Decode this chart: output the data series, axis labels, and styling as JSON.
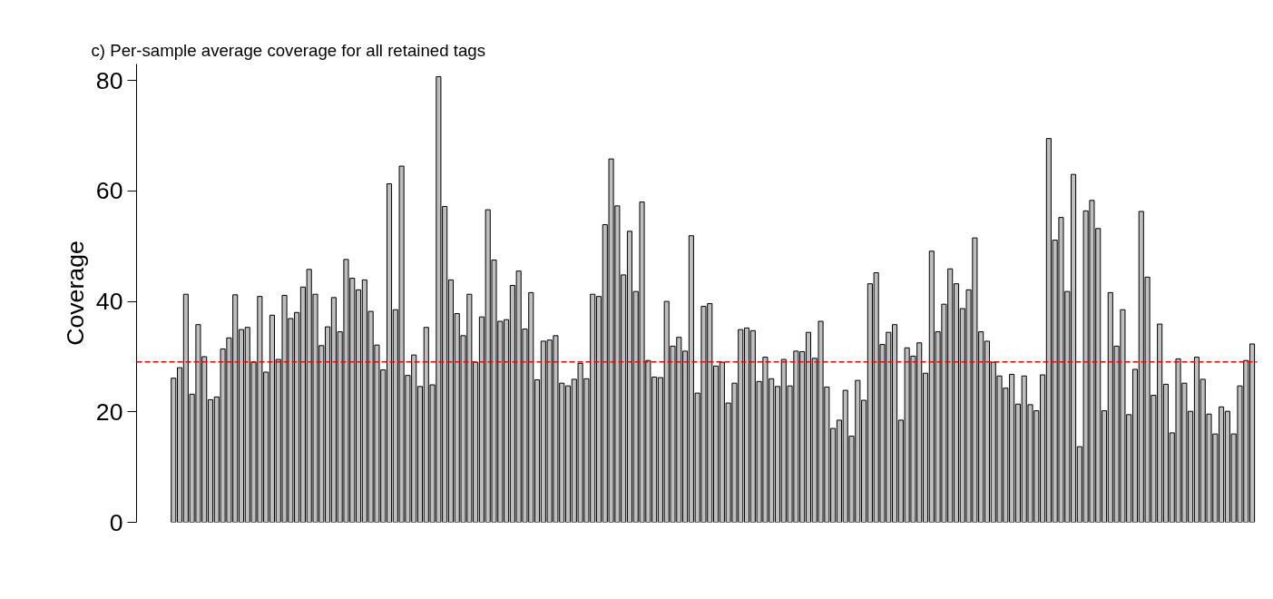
{
  "chart_data": {
    "type": "bar",
    "title": "c)  Per-sample average coverage for all retained tags",
    "ylabel": "Coverage",
    "categories": [
      null,
      null,
      null,
      null,
      null,
      null,
      null,
      null,
      null,
      null,
      null,
      null,
      null,
      null,
      null,
      null,
      null,
      null,
      null,
      null,
      null,
      null,
      null,
      null,
      null,
      null,
      null,
      null,
      null,
      null,
      null,
      null,
      null,
      null,
      null,
      null,
      null,
      null,
      null,
      null,
      null,
      null,
      null,
      null,
      null,
      null,
      null,
      null,
      null,
      null,
      null,
      null,
      null,
      null,
      null,
      null,
      null,
      null,
      null,
      null,
      null,
      null,
      null,
      null,
      null,
      null,
      null,
      null,
      null,
      null,
      null,
      null,
      null,
      null,
      null,
      null,
      null,
      null,
      null,
      null,
      null,
      null,
      null,
      null,
      null,
      null,
      null,
      null,
      null,
      null,
      null,
      null,
      null,
      null,
      null,
      null,
      null,
      null,
      null,
      null,
      null,
      null,
      null,
      null,
      null,
      null,
      null,
      null,
      null,
      null,
      null,
      null,
      null,
      null,
      null,
      null,
      null,
      null,
      null,
      null,
      null,
      null,
      null,
      null,
      null,
      null,
      null,
      null,
      null,
      null,
      null,
      null,
      null,
      null,
      null,
      null,
      null,
      null,
      null,
      null,
      null,
      null,
      null,
      null,
      null,
      null,
      null,
      null,
      null,
      null,
      null,
      null,
      null,
      null,
      null,
      null,
      null,
      null,
      null,
      null,
      null,
      null,
      null,
      null,
      null,
      null,
      null,
      null,
      null,
      null,
      null,
      null,
      null,
      null,
      null,
      null
    ],
    "values": [
      26.1,
      28.0,
      41.3,
      23.2,
      35.8,
      30.0,
      22.2,
      22.7,
      31.4,
      33.4,
      41.2,
      34.9,
      35.3,
      29.0,
      40.9,
      27.2,
      37.5,
      29.5,
      41.1,
      36.9,
      38.0,
      42.6,
      45.8,
      41.3,
      32.0,
      35.4,
      40.7,
      34.5,
      47.6,
      44.2,
      42.1,
      43.9,
      38.2,
      32.1,
      27.6,
      61.3,
      38.5,
      64.5,
      26.6,
      30.3,
      24.6,
      35.3,
      24.9,
      80.7,
      57.2,
      43.9,
      37.8,
      33.8,
      41.3,
      29.0,
      37.2,
      56.6,
      47.5,
      36.4,
      36.7,
      42.9,
      45.5,
      35.0,
      41.6,
      25.8,
      32.8,
      33.0,
      33.8,
      25.2,
      24.7,
      25.9,
      28.8,
      26.0,
      41.3,
      40.9,
      53.9,
      65.8,
      57.3,
      44.8,
      52.7,
      41.8,
      58.0,
      29.3,
      26.3,
      26.2,
      40.0,
      31.9,
      33.5,
      31.0,
      51.9,
      23.4,
      39.1,
      39.6,
      28.3,
      29.0,
      21.6,
      25.2,
      34.9,
      35.2,
      34.7,
      25.5,
      29.9,
      26.0,
      24.6,
      29.5,
      24.7,
      31.0,
      30.9,
      34.4,
      29.7,
      36.4,
      24.5,
      17.0,
      18.5,
      23.9,
      15.6,
      25.7,
      22.1,
      43.2,
      45.2,
      32.2,
      34.4,
      35.8,
      18.5,
      31.6,
      30.1,
      32.5,
      27.0,
      49.1,
      34.5,
      39.5,
      45.9,
      43.2,
      38.7,
      42.1,
      51.5,
      34.5,
      32.8,
      29.0,
      26.5,
      24.3,
      26.8,
      21.4,
      26.5,
      21.3,
      20.2,
      26.7,
      69.5,
      51.1,
      55.2,
      41.8,
      63.0,
      13.7,
      56.4,
      58.3,
      53.2,
      20.2,
      41.6,
      31.9,
      38.5,
      19.5,
      27.7,
      56.3,
      44.4,
      23.0,
      35.9,
      25.0,
      16.2,
      29.6,
      25.2,
      20.1,
      29.9,
      25.9,
      19.6,
      16.0,
      20.9,
      20.1,
      16.0,
      24.7,
      29.3,
      32.3
    ],
    "color": "#bebebe",
    "ylim": [
      0,
      83
    ],
    "yticks": [
      0,
      20,
      40,
      60,
      80
    ],
    "grid": false,
    "ref_lines": [
      {
        "axis": "y",
        "value": 29.05,
        "color": "#ff0000",
        "line_style": "dashed"
      }
    ]
  }
}
